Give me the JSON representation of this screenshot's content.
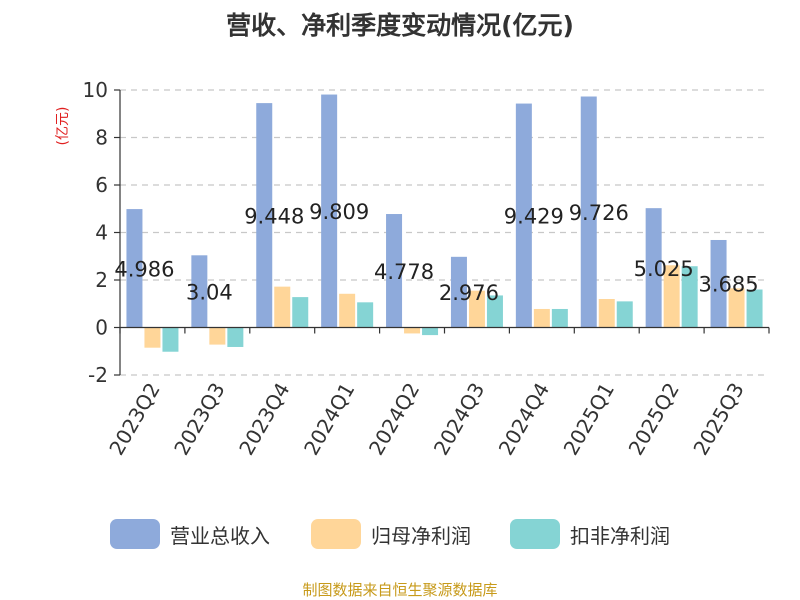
{
  "chart_data": {
    "type": "bar",
    "title": "营收、净利季度变动情况(亿元)",
    "ylabel": "(亿元)",
    "xlabel": "",
    "ylim": [
      -2,
      10
    ],
    "yticks": [
      -2,
      0,
      2,
      4,
      6,
      8,
      10
    ],
    "grid": true,
    "legend_position": "bottom",
    "categories": [
      "2023Q2",
      "2023Q3",
      "2023Q4",
      "2024Q1",
      "2024Q2",
      "2024Q3",
      "2024Q4",
      "2025Q1",
      "2025Q2",
      "2025Q3"
    ],
    "series": [
      {
        "name": "营业总收入",
        "color": "#8eaadb",
        "values": [
          4.986,
          3.04,
          9.448,
          9.809,
          4.778,
          2.976,
          9.429,
          9.726,
          5.025,
          3.685
        ],
        "labels": [
          "4.986",
          "3.04",
          "9.448",
          "9.809",
          "4.778",
          "2.976",
          "9.429",
          "9.726",
          "5.025",
          "3.685"
        ]
      },
      {
        "name": "归母净利润",
        "color": "#ffd699",
        "values": [
          -0.85,
          -0.72,
          1.72,
          1.42,
          -0.25,
          1.55,
          0.78,
          1.2,
          2.62,
          1.65
        ]
      },
      {
        "name": "扣非净利润",
        "color": "#85d4d4",
        "values": [
          -1.02,
          -0.82,
          1.28,
          1.06,
          -0.32,
          1.35,
          0.78,
          1.1,
          2.58,
          1.6
        ]
      }
    ]
  },
  "source": "制图数据来自恒生聚源数据库"
}
